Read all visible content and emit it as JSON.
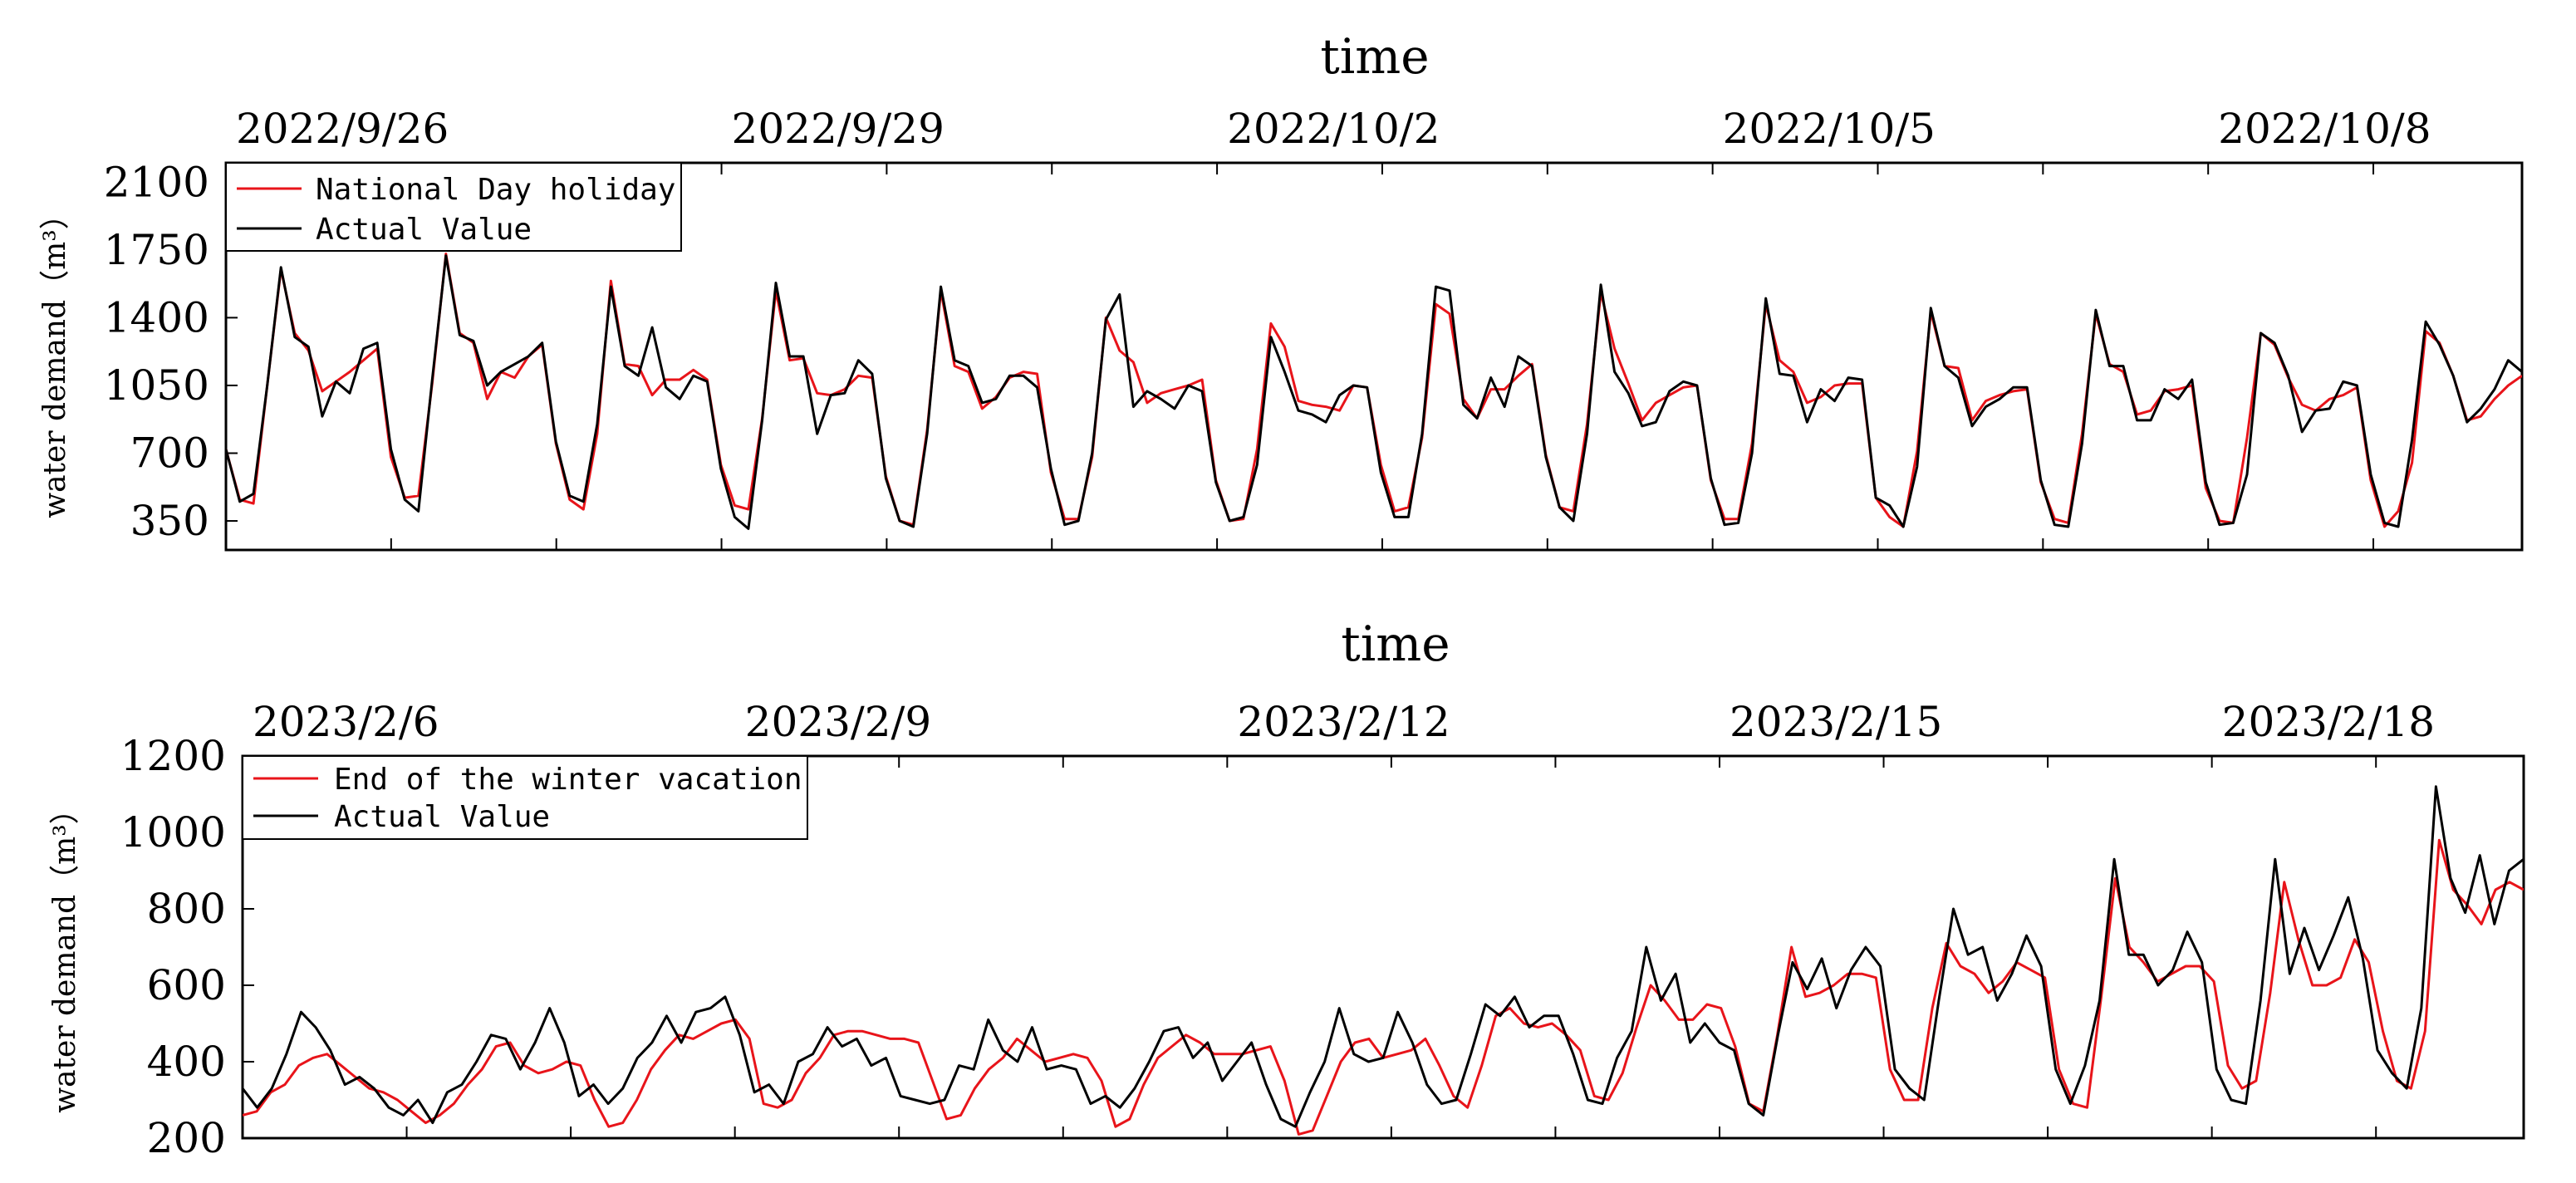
{
  "chart_data": [
    {
      "type": "line",
      "title": "time",
      "ylabel": "water demand（m³）",
      "ylim": [
        200,
        2200
      ],
      "yticks": [
        350,
        700,
        1050,
        1400,
        1750,
        2100
      ],
      "x_ticklabels": [
        "2022/9/26",
        "2022/9/29",
        "2022/10/2",
        "2022/10/5",
        "2022/10/8"
      ],
      "x_tick_positions": [
        0,
        3,
        6,
        9,
        12
      ],
      "xlim": [
        0,
        13.9
      ],
      "legend_position": "top-left",
      "colors": {
        "predicted": "#e8141a",
        "actual": "#000000"
      },
      "series": [
        {
          "name": "National Day holiday",
          "values": [
            720,
            460,
            440,
            1050,
            1650,
            1320,
            1230,
            1020,
            1070,
            1120,
            1180,
            1240,
            680,
            470,
            480,
            1060,
            1730,
            1320,
            1270,
            980,
            1120,
            1090,
            1200,
            1260,
            750,
            460,
            410,
            800,
            1590,
            1160,
            1150,
            1000,
            1080,
            1080,
            1130,
            1080,
            640,
            430,
            410,
            880,
            1540,
            1180,
            1190,
            1010,
            1000,
            1030,
            1100,
            1090,
            580,
            350,
            330,
            820,
            1540,
            1150,
            1120,
            930,
            990,
            1090,
            1120,
            1110,
            600,
            360,
            360,
            680,
            1400,
            1230,
            1170,
            960,
            1010,
            1030,
            1050,
            1080,
            560,
            350,
            360,
            720,
            1370,
            1250,
            970,
            950,
            940,
            920,
            1050,
            1040,
            640,
            400,
            420,
            780,
            1470,
            1420,
            980,
            880,
            1030,
            1030,
            1100,
            1160,
            690,
            420,
            400,
            850,
            1530,
            1240,
            1060,
            870,
            960,
            1000,
            1040,
            1050,
            560,
            360,
            360,
            750,
            1470,
            1180,
            1120,
            960,
            990,
            1050,
            1060,
            1060,
            470,
            370,
            320,
            710,
            1430,
            1150,
            1140,
            870,
            970,
            1000,
            1020,
            1030,
            550,
            360,
            340,
            800,
            1420,
            1160,
            1120,
            900,
            920,
            1020,
            1030,
            1050,
            520,
            350,
            340,
            780,
            1320,
            1260,
            1090,
            950,
            920,
            980,
            1000,
            1040,
            560,
            320,
            400,
            650,
            1330,
            1270,
            1100,
            870,
            890,
            980,
            1050,
            1100
          ]
        },
        {
          "name": "Actual Value",
          "values": [
            720,
            450,
            490,
            1050,
            1660,
            1300,
            1250,
            890,
            1070,
            1010,
            1240,
            1270,
            720,
            460,
            400,
            1080,
            1720,
            1310,
            1280,
            1050,
            1120,
            1160,
            1200,
            1270,
            760,
            480,
            450,
            850,
            1560,
            1150,
            1100,
            1350,
            1040,
            980,
            1100,
            1070,
            620,
            370,
            310,
            870,
            1580,
            1200,
            1200,
            800,
            1000,
            1010,
            1180,
            1110,
            570,
            350,
            320,
            800,
            1560,
            1180,
            1150,
            960,
            980,
            1100,
            1100,
            1040,
            620,
            330,
            350,
            700,
            1390,
            1520,
            940,
            1020,
            980,
            930,
            1050,
            1020,
            550,
            350,
            370,
            640,
            1300,
            1120,
            920,
            900,
            860,
            1000,
            1050,
            1040,
            600,
            370,
            370,
            800,
            1560,
            1540,
            950,
            880,
            1090,
            940,
            1200,
            1150,
            680,
            420,
            350,
            800,
            1570,
            1120,
            1010,
            840,
            860,
            1020,
            1070,
            1050,
            570,
            330,
            340,
            700,
            1500,
            1110,
            1100,
            860,
            1030,
            970,
            1090,
            1080,
            470,
            430,
            320,
            630,
            1450,
            1150,
            1090,
            840,
            940,
            980,
            1040,
            1040,
            560,
            330,
            320,
            750,
            1440,
            1150,
            1150,
            870,
            870,
            1030,
            980,
            1080,
            550,
            330,
            340,
            590,
            1320,
            1270,
            1100,
            810,
            920,
            930,
            1070,
            1050,
            590,
            340,
            320,
            770,
            1380,
            1260,
            1100,
            860,
            930,
            1030,
            1180,
            1120
          ]
        }
      ]
    },
    {
      "type": "line",
      "title": "time",
      "ylabel": "water demand（m³）",
      "ylim": [
        200,
        1200
      ],
      "yticks": [
        200,
        400,
        600,
        800,
        1000,
        1200
      ],
      "x_ticklabels": [
        "2023/2/6",
        "2023/2/9",
        "2023/2/12",
        "2023/2/15",
        "2023/2/18"
      ],
      "x_tick_positions": [
        0,
        3,
        6,
        9,
        12
      ],
      "xlim": [
        0,
        13.9
      ],
      "legend_position": "top-left",
      "colors": {
        "predicted": "#e8141a",
        "actual": "#000000"
      },
      "series": [
        {
          "name": "End of the winter vacation",
          "values": [
            260,
            270,
            320,
            340,
            390,
            410,
            420,
            390,
            360,
            330,
            320,
            300,
            270,
            240,
            260,
            290,
            340,
            380,
            440,
            450,
            390,
            370,
            380,
            400,
            390,
            300,
            230,
            240,
            300,
            380,
            430,
            470,
            460,
            480,
            500,
            510,
            460,
            290,
            280,
            300,
            370,
            410,
            470,
            480,
            480,
            470,
            460,
            460,
            450,
            350,
            250,
            260,
            330,
            380,
            410,
            460,
            430,
            400,
            410,
            420,
            410,
            350,
            230,
            250,
            340,
            410,
            440,
            470,
            450,
            420,
            420,
            420,
            430,
            440,
            350,
            210,
            220,
            310,
            400,
            450,
            460,
            410,
            420,
            430,
            460,
            390,
            310,
            280,
            390,
            520,
            540,
            500,
            490,
            500,
            470,
            430,
            310,
            300,
            370,
            490,
            600,
            560,
            510,
            510,
            550,
            540,
            440,
            290,
            270,
            470,
            700,
            570,
            580,
            600,
            630,
            630,
            620,
            380,
            300,
            300,
            540,
            710,
            650,
            630,
            580,
            610,
            660,
            640,
            620,
            380,
            290,
            280,
            570,
            880,
            700,
            660,
            610,
            630,
            650,
            650,
            610,
            390,
            330,
            350,
            580,
            870,
            720,
            600,
            600,
            620,
            720,
            660,
            480,
            350,
            330,
            480,
            980,
            850,
            810,
            760,
            850,
            870,
            850
          ]
        },
        {
          "name": "Actual Value",
          "values": [
            330,
            280,
            330,
            420,
            530,
            490,
            430,
            340,
            360,
            330,
            280,
            260,
            300,
            240,
            320,
            340,
            400,
            470,
            460,
            380,
            450,
            540,
            450,
            310,
            340,
            290,
            330,
            410,
            450,
            520,
            450,
            530,
            540,
            570,
            470,
            320,
            340,
            290,
            400,
            420,
            490,
            440,
            460,
            390,
            410,
            310,
            300,
            290,
            300,
            390,
            380,
            510,
            430,
            400,
            490,
            380,
            390,
            380,
            290,
            310,
            280,
            330,
            400,
            480,
            490,
            410,
            450,
            350,
            400,
            450,
            340,
            250,
            230,
            320,
            400,
            540,
            420,
            400,
            410,
            530,
            450,
            340,
            290,
            300,
            420,
            550,
            520,
            570,
            490,
            520,
            520,
            420,
            300,
            290,
            410,
            480,
            700,
            560,
            630,
            450,
            500,
            450,
            430,
            290,
            260,
            470,
            660,
            590,
            670,
            540,
            640,
            700,
            650,
            380,
            330,
            300,
            560,
            800,
            680,
            700,
            560,
            630,
            730,
            650,
            380,
            290,
            390,
            560,
            930,
            680,
            680,
            600,
            640,
            740,
            660,
            380,
            300,
            290,
            560,
            930,
            630,
            750,
            640,
            730,
            830,
            670,
            430,
            370,
            330,
            540,
            1120,
            880,
            790,
            940,
            760,
            900,
            930
          ]
        }
      ]
    }
  ]
}
